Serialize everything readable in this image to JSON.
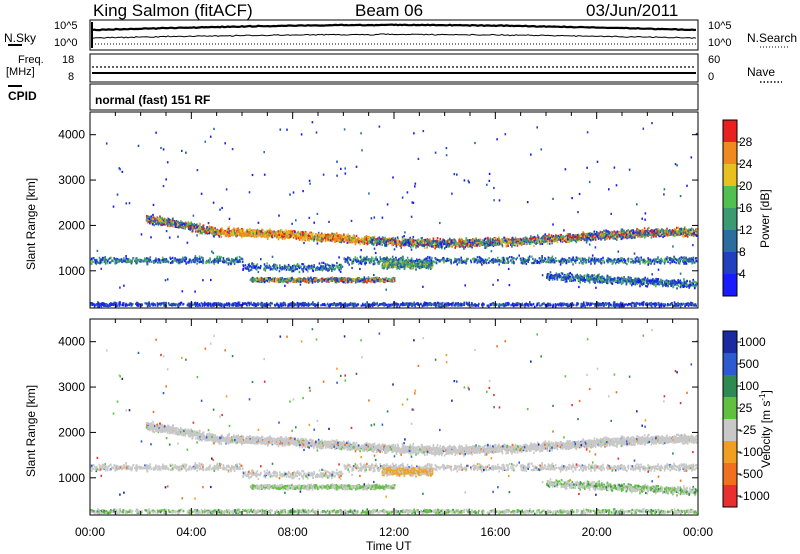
{
  "header": {
    "station": "King Salmon (fitACF)",
    "beam": "Beam 06",
    "date": "03/Jun/2011"
  },
  "noise_panel": {
    "left_label": "N.Sky",
    "left_ticks": [
      "10^5",
      "10^0"
    ],
    "right_label": "N.Search",
    "right_ticks": [
      "10^5",
      "10^0"
    ]
  },
  "freq_panel": {
    "left_label_1": "Freq.",
    "left_label_2": "[MHz]",
    "left_ticks": [
      "18",
      "8"
    ],
    "right_label": "Nave",
    "right_ticks": [
      "60",
      "0"
    ]
  },
  "cpid_panel": {
    "label": "CPID",
    "mode_text": "normal (fast) 151 RF"
  },
  "chart_data": [
    {
      "type": "heatmap",
      "ylabel": "Slant Range [km]",
      "ylim": [
        180,
        4500
      ],
      "xlim": [
        "00:00",
        "24:00"
      ],
      "yticks": [
        1000,
        2000,
        3000,
        4000
      ],
      "colorbar": {
        "title": "Power [dB]",
        "range": [
          0,
          32
        ],
        "ticks": [
          4,
          8,
          12,
          16,
          20,
          24,
          28
        ],
        "colors": [
          "#1a1aff",
          "#2040c0",
          "#2c6da0",
          "#3a9a70",
          "#50c050",
          "#e8c020",
          "#f08a20",
          "#e82020"
        ]
      }
    },
    {
      "type": "heatmap",
      "ylabel": "Slant Range [km]",
      "ylim": [
        180,
        4500
      ],
      "xlim": [
        "00:00",
        "24:00"
      ],
      "yticks": [
        1000,
        2000,
        3000,
        4000
      ],
      "xlabel": "Time UT",
      "xticks": [
        "00:00",
        "04:00",
        "08:00",
        "12:00",
        "16:00",
        "20:00",
        "00:00"
      ],
      "colorbar": {
        "title": "Velocity [m s-1]",
        "ticks": [
          "1000",
          "500",
          "100",
          "25",
          "-25",
          "-100",
          "-500",
          "-1000"
        ],
        "colors": [
          "#1a2aa0",
          "#2e5ad0",
          "#2e8a50",
          "#60c040",
          "#c8c8c8",
          "#f0a020",
          "#f07020",
          "#e83030"
        ]
      }
    }
  ]
}
